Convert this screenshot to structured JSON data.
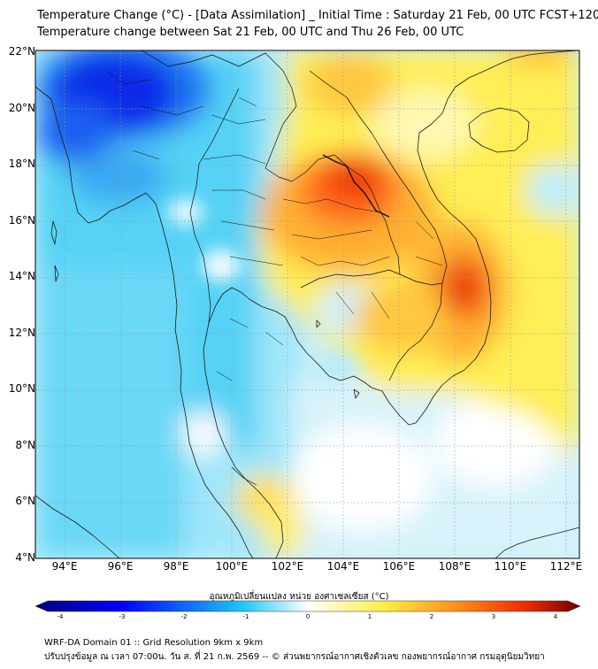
{
  "title_line1": "Temperature Change (°C) - [Data Assimilation] _ Initial Time : Saturday 21 Feb, 00 UTC FCST+120",
  "title_line2": "Temperature change between Sat 21 Feb, 00 UTC and Thu 26 Feb, 00 UTC",
  "lat_labels": [
    "22°N",
    "20°N",
    "18°N",
    "16°N",
    "14°N",
    "12°N",
    "10°N",
    "8°N",
    "6°N",
    "4°N"
  ],
  "lon_labels": [
    "94°E",
    "96°E",
    "98°E",
    "100°E",
    "102°E",
    "104°E",
    "106°E",
    "108°E",
    "110°E",
    "112°E"
  ],
  "colorbar": {
    "title": "อุณหภูมิเปลี่ยนแปลง หน่วย องศาเซลเซียส (°C)",
    "ticks": [
      "-4",
      "-3",
      "-2",
      "-1",
      "0",
      "1",
      "2",
      "3",
      "4"
    ],
    "colors": {
      "min": "#00007a",
      "cold": "#0000ff",
      "cool": "#1ec8f5",
      "neutral": "#ffffff",
      "warm": "#ffee44",
      "hot": "#ff8a1a",
      "very_hot": "#ee2a00",
      "max": "#700000"
    }
  },
  "footer_line1": "WRF-DA Domain 01 :: Grid Resolution 9km x 9km",
  "footer_line2": "ปรับปรุงข้อมูล ณ เวลา 07:00น. วัน ส. ที่ 21 ก.พ. 2569 -- © ส่วนพยากรณ์อากาศเชิงตัวเลข กองพยากรณ์อากาศ กรมอุตุนิยมวิทยา"
}
